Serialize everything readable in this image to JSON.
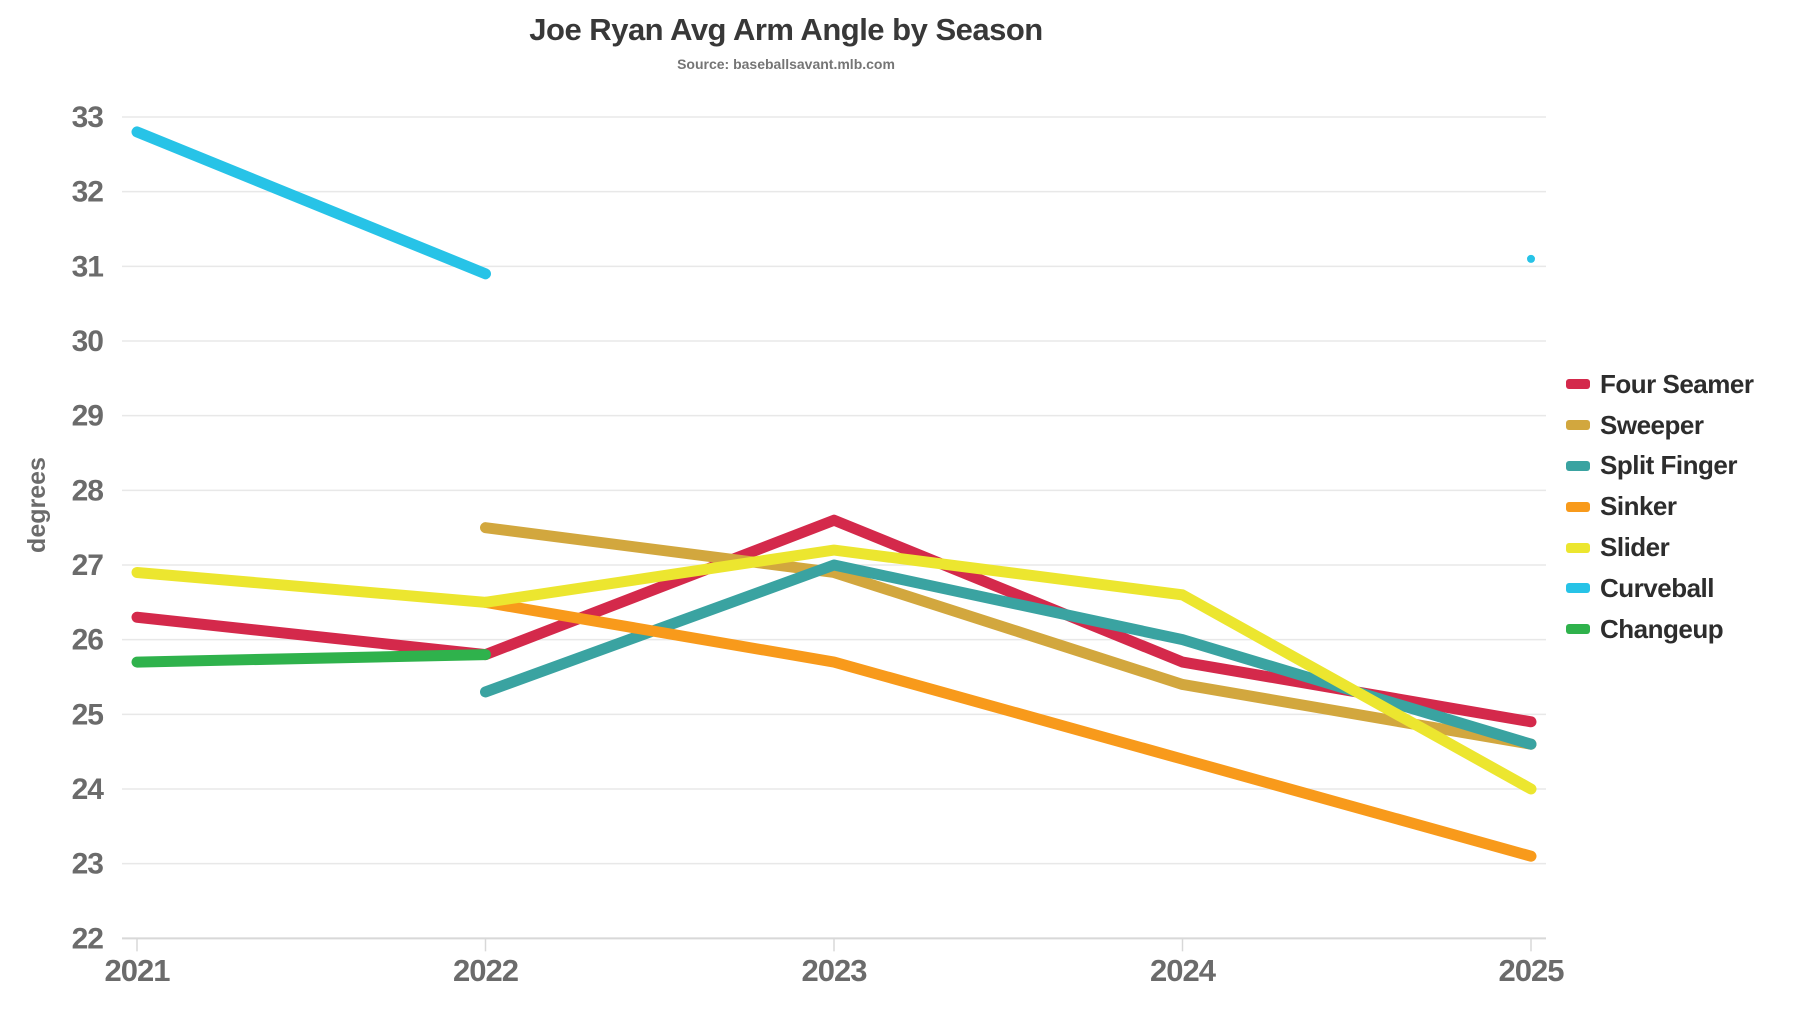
{
  "header": {
    "title": "Joe Ryan Avg Arm Angle by Season",
    "subtitle": "Source: baseballsavant.mlb.com"
  },
  "colors": {
    "grid": "#e8e8e8",
    "axis_line": "#d8d8d8",
    "tick_text": "#6b6b6b",
    "legend_text": "#2d2d2d"
  },
  "chart_data": {
    "type": "line",
    "title": "Joe Ryan Avg Arm Angle by Season",
    "subtitle": "Source: baseballsavant.mlb.com",
    "xlabel": "",
    "ylabel": "degrees",
    "ylim": [
      22,
      33
    ],
    "grid": true,
    "legend_position": "right",
    "categories": [
      "2021",
      "2022",
      "2023",
      "2024",
      "2025"
    ],
    "series": [
      {
        "name": "Four Seamer",
        "color": "#d4294b",
        "values": [
          26.3,
          25.8,
          27.6,
          25.7,
          24.9
        ]
      },
      {
        "name": "Sweeper",
        "color": "#d2a73e",
        "values": [
          null,
          27.5,
          26.9,
          25.4,
          24.6
        ]
      },
      {
        "name": "Split Finger",
        "color": "#3aa3a1",
        "values": [
          null,
          25.3,
          27.0,
          26.0,
          24.6
        ]
      },
      {
        "name": "Sinker",
        "color": "#f89a1b",
        "values": [
          null,
          26.5,
          25.7,
          24.4,
          23.1
        ]
      },
      {
        "name": "Slider",
        "color": "#ece62f",
        "values": [
          26.9,
          26.5,
          27.2,
          26.6,
          24.0
        ]
      },
      {
        "name": "Curveball",
        "color": "#27c3e7",
        "values": [
          32.8,
          30.9,
          null,
          null,
          31.1
        ]
      },
      {
        "name": "Changeup",
        "color": "#2fb24c",
        "values": [
          25.7,
          25.8,
          null,
          null,
          null
        ]
      }
    ]
  }
}
